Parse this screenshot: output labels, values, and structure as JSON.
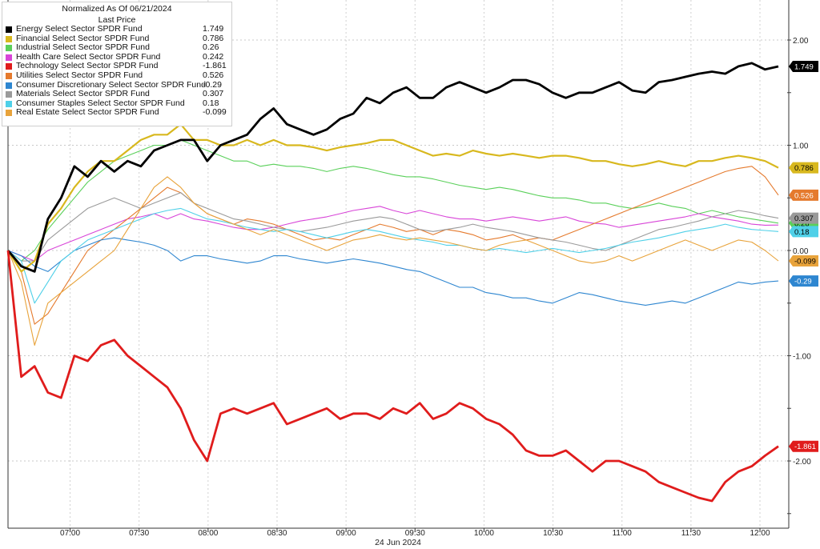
{
  "chart_data": {
    "type": "line",
    "header": "Normalized As Of 06/21/2024",
    "subheader": "Last Price",
    "xlabel": "24 Jun 2024",
    "x_ticks": [
      "07:00",
      "07:30",
      "08:00",
      "08:30",
      "09:00",
      "09:30",
      "10:00",
      "10:30",
      "11:00",
      "11:30",
      "12:00"
    ],
    "y_ticks": [
      2.0,
      1.0,
      0.0,
      -1.0,
      -2.0
    ],
    "y_tick_labels": [
      "2.00",
      "1.00",
      "0.00",
      "-1.00",
      "-2.00"
    ],
    "ylim": [
      -2.5,
      2.35
    ],
    "x_range": [
      "06:33",
      "12:08"
    ],
    "series": [
      {
        "name": "Energy Select Sector SPDR Fund",
        "color": "#000000",
        "last": "1.749",
        "values": [
          0.0,
          -0.15,
          -0.2,
          0.3,
          0.5,
          0.8,
          0.7,
          0.85,
          0.75,
          0.85,
          0.8,
          0.95,
          1.0,
          1.05,
          1.05,
          0.85,
          1.0,
          1.05,
          1.1,
          1.25,
          1.35,
          1.2,
          1.15,
          1.1,
          1.15,
          1.25,
          1.3,
          1.45,
          1.4,
          1.5,
          1.55,
          1.45,
          1.45,
          1.55,
          1.6,
          1.55,
          1.5,
          1.55,
          1.62,
          1.62,
          1.58,
          1.5,
          1.45,
          1.5,
          1.5,
          1.55,
          1.6,
          1.52,
          1.5,
          1.6,
          1.62,
          1.65,
          1.68,
          1.7,
          1.68,
          1.75,
          1.78,
          1.72,
          1.749
        ]
      },
      {
        "name": "Financial Select Sector SPDR Fund",
        "color": "#d8b81e",
        "last": "0.786",
        "values": [
          0.0,
          -0.2,
          -0.1,
          0.25,
          0.4,
          0.6,
          0.75,
          0.85,
          0.85,
          0.95,
          1.05,
          1.1,
          1.1,
          1.2,
          1.05,
          1.05,
          1.0,
          1.0,
          1.05,
          1.0,
          1.05,
          1.0,
          1.0,
          0.98,
          0.95,
          0.98,
          1.0,
          1.02,
          1.05,
          1.05,
          1.0,
          0.95,
          0.9,
          0.92,
          0.9,
          0.95,
          0.92,
          0.9,
          0.92,
          0.9,
          0.88,
          0.9,
          0.9,
          0.88,
          0.85,
          0.85,
          0.82,
          0.8,
          0.82,
          0.85,
          0.82,
          0.8,
          0.85,
          0.85,
          0.88,
          0.9,
          0.88,
          0.85,
          0.786
        ]
      },
      {
        "name": "Industrial Select Sector SPDR Fund",
        "color": "#5ad05a",
        "last": "0.26",
        "values": [
          0.0,
          -0.1,
          0.0,
          0.2,
          0.35,
          0.5,
          0.65,
          0.75,
          0.85,
          0.9,
          0.95,
          1.0,
          1.0,
          1.05,
          1.0,
          0.95,
          0.9,
          0.85,
          0.85,
          0.8,
          0.82,
          0.8,
          0.8,
          0.78,
          0.75,
          0.78,
          0.8,
          0.78,
          0.75,
          0.72,
          0.7,
          0.7,
          0.68,
          0.65,
          0.62,
          0.6,
          0.58,
          0.6,
          0.58,
          0.55,
          0.52,
          0.5,
          0.5,
          0.48,
          0.45,
          0.45,
          0.42,
          0.4,
          0.42,
          0.45,
          0.42,
          0.4,
          0.35,
          0.38,
          0.35,
          0.32,
          0.3,
          0.28,
          0.26
        ]
      },
      {
        "name": "Health Care Select Sector SPDR Fund",
        "color": "#d845d8",
        "last": "0.242",
        "values": [
          0.0,
          -0.05,
          -0.1,
          0.0,
          0.05,
          0.1,
          0.15,
          0.2,
          0.25,
          0.3,
          0.32,
          0.35,
          0.3,
          0.35,
          0.3,
          0.28,
          0.25,
          0.22,
          0.2,
          0.2,
          0.22,
          0.25,
          0.28,
          0.3,
          0.32,
          0.35,
          0.38,
          0.4,
          0.42,
          0.38,
          0.35,
          0.38,
          0.35,
          0.32,
          0.3,
          0.3,
          0.28,
          0.3,
          0.32,
          0.3,
          0.28,
          0.3,
          0.32,
          0.28,
          0.26,
          0.25,
          0.22,
          0.24,
          0.26,
          0.28,
          0.3,
          0.32,
          0.35,
          0.32,
          0.3,
          0.28,
          0.25,
          0.24,
          0.242
        ]
      },
      {
        "name": "Technology Select Sector SPDR Fund",
        "color": "#e01c1c",
        "last": "-1.861",
        "values": [
          0.0,
          -1.2,
          -1.1,
          -1.35,
          -1.4,
          -1.0,
          -1.05,
          -0.9,
          -0.85,
          -1.0,
          -1.1,
          -1.2,
          -1.3,
          -1.5,
          -1.8,
          -2.0,
          -1.55,
          -1.5,
          -1.55,
          -1.5,
          -1.45,
          -1.65,
          -1.6,
          -1.55,
          -1.5,
          -1.6,
          -1.55,
          -1.55,
          -1.6,
          -1.5,
          -1.55,
          -1.45,
          -1.6,
          -1.55,
          -1.45,
          -1.5,
          -1.6,
          -1.65,
          -1.75,
          -1.9,
          -1.95,
          -1.95,
          -1.9,
          -2.0,
          -2.1,
          -2.0,
          -2.0,
          -2.05,
          -2.1,
          -2.2,
          -2.25,
          -2.3,
          -2.35,
          -2.38,
          -2.2,
          -2.1,
          -2.05,
          -1.95,
          -1.861
        ]
      },
      {
        "name": "Utilities Select Sector SPDR Fund",
        "color": "#e57a2d",
        "last": "0.526",
        "values": [
          0.0,
          -0.2,
          -0.7,
          -0.6,
          -0.4,
          -0.2,
          0.0,
          0.1,
          0.2,
          0.3,
          0.4,
          0.5,
          0.6,
          0.55,
          0.45,
          0.35,
          0.3,
          0.25,
          0.3,
          0.28,
          0.25,
          0.2,
          0.15,
          0.1,
          0.12,
          0.1,
          0.15,
          0.2,
          0.25,
          0.22,
          0.18,
          0.2,
          0.15,
          0.2,
          0.18,
          0.15,
          0.1,
          0.12,
          0.15,
          0.1,
          0.12,
          0.1,
          0.15,
          0.2,
          0.25,
          0.3,
          0.35,
          0.4,
          0.45,
          0.5,
          0.55,
          0.6,
          0.65,
          0.7,
          0.75,
          0.78,
          0.8,
          0.7,
          0.526
        ]
      },
      {
        "name": "Consumer Discretionary Select Sector SPDR Fund",
        "color": "#2e86d0",
        "last": "-0.29",
        "values": [
          0.0,
          -0.05,
          -0.15,
          -0.2,
          -0.1,
          0.0,
          0.05,
          0.1,
          0.12,
          0.1,
          0.08,
          0.05,
          0.0,
          -0.1,
          -0.05,
          -0.05,
          -0.08,
          -0.1,
          -0.12,
          -0.1,
          -0.05,
          -0.05,
          -0.08,
          -0.1,
          -0.12,
          -0.1,
          -0.08,
          -0.1,
          -0.12,
          -0.15,
          -0.18,
          -0.2,
          -0.25,
          -0.3,
          -0.35,
          -0.35,
          -0.4,
          -0.42,
          -0.45,
          -0.45,
          -0.48,
          -0.5,
          -0.45,
          -0.4,
          -0.42,
          -0.45,
          -0.48,
          -0.5,
          -0.52,
          -0.5,
          -0.48,
          -0.5,
          -0.45,
          -0.4,
          -0.35,
          -0.3,
          -0.32,
          -0.3,
          -0.29
        ]
      },
      {
        "name": "Materials Select Sector SPDR Fund",
        "color": "#9a9a9a",
        "last": "0.307",
        "values": [
          0.0,
          -0.1,
          -0.1,
          0.1,
          0.2,
          0.3,
          0.4,
          0.45,
          0.5,
          0.45,
          0.4,
          0.45,
          0.5,
          0.55,
          0.45,
          0.4,
          0.35,
          0.3,
          0.28,
          0.25,
          0.22,
          0.2,
          0.18,
          0.2,
          0.22,
          0.25,
          0.28,
          0.3,
          0.32,
          0.3,
          0.25,
          0.2,
          0.18,
          0.2,
          0.22,
          0.25,
          0.22,
          0.2,
          0.18,
          0.15,
          0.12,
          0.1,
          0.08,
          0.05,
          0.02,
          0.0,
          0.05,
          0.1,
          0.15,
          0.2,
          0.22,
          0.25,
          0.28,
          0.32,
          0.35,
          0.38,
          0.36,
          0.33,
          0.307
        ]
      },
      {
        "name": "Consumer Staples Select Sector SPDR Fund",
        "color": "#4fd0e8",
        "last": "0.18",
        "values": [
          0.0,
          -0.1,
          -0.5,
          -0.3,
          -0.1,
          0.0,
          0.1,
          0.15,
          0.2,
          0.25,
          0.3,
          0.35,
          0.38,
          0.4,
          0.35,
          0.3,
          0.28,
          0.25,
          0.22,
          0.2,
          0.18,
          0.2,
          0.18,
          0.15,
          0.12,
          0.15,
          0.18,
          0.2,
          0.18,
          0.15,
          0.12,
          0.1,
          0.08,
          0.05,
          0.05,
          0.02,
          0.0,
          0.02,
          0.0,
          -0.02,
          0.0,
          0.02,
          0.0,
          -0.02,
          0.0,
          0.02,
          0.05,
          0.08,
          0.1,
          0.12,
          0.15,
          0.18,
          0.2,
          0.22,
          0.25,
          0.22,
          0.2,
          0.19,
          0.18
        ]
      },
      {
        "name": "Real Estate Select Sector SPDR Fund",
        "color": "#e8a33b",
        "last": "-0.099",
        "values": [
          0.0,
          -0.3,
          -0.9,
          -0.5,
          -0.4,
          -0.3,
          -0.2,
          -0.1,
          0.0,
          0.2,
          0.4,
          0.6,
          0.7,
          0.6,
          0.45,
          0.35,
          0.3,
          0.25,
          0.2,
          0.15,
          0.2,
          0.15,
          0.1,
          0.05,
          0.0,
          0.05,
          0.1,
          0.12,
          0.15,
          0.12,
          0.1,
          0.12,
          0.1,
          0.08,
          0.05,
          0.02,
          0.0,
          0.05,
          0.08,
          0.1,
          0.05,
          0.0,
          -0.05,
          -0.1,
          -0.12,
          -0.1,
          -0.05,
          -0.1,
          -0.05,
          0.0,
          0.05,
          0.1,
          0.05,
          0.0,
          0.05,
          0.1,
          0.08,
          0.0,
          -0.099
        ]
      }
    ]
  }
}
